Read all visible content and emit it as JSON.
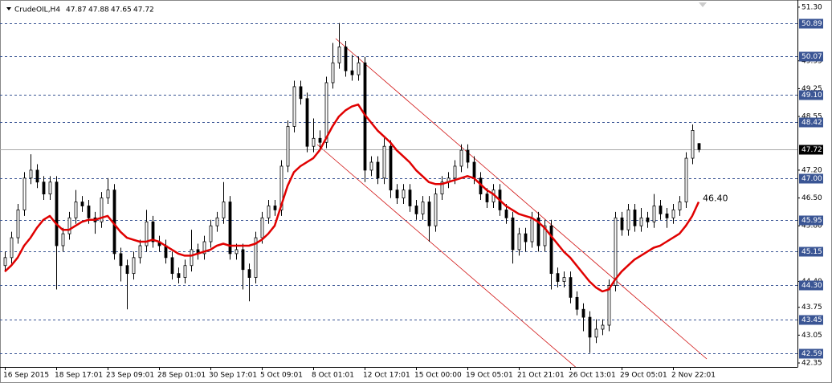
{
  "chart_data": {
    "type": "candlestick",
    "symbol": "CrudeOIL,H4",
    "categories": [
      "16 Sep 2015",
      null,
      null,
      null,
      null,
      null,
      null,
      null,
      "18 Sep 17:01",
      null,
      null,
      null,
      null,
      null,
      null,
      null,
      "23 Sep 09:01",
      null,
      null,
      null,
      null,
      null,
      null,
      null,
      "28 Sep 01:01",
      null,
      null,
      null,
      null,
      null,
      null,
      null,
      "30 Sep 17:01",
      null,
      null,
      null,
      null,
      null,
      null,
      null,
      "5 Oct 09:01",
      null,
      null,
      null,
      null,
      null,
      null,
      null,
      "8 Oct 01:01",
      null,
      null,
      null,
      null,
      null,
      null,
      null,
      "12 Oct 17:01",
      null,
      null,
      null,
      null,
      null,
      null,
      null,
      "15 Oct 00:00",
      null,
      null,
      null,
      null,
      null,
      null,
      null,
      "19 Oct 05:01",
      null,
      null,
      null,
      null,
      null,
      null,
      null,
      "21 Oct 21:01",
      null,
      null,
      null,
      null,
      null,
      null,
      null,
      "26 Oct 13:01",
      null,
      null,
      null,
      null,
      null,
      null,
      null,
      "29 Oct 05:01",
      null,
      null,
      null,
      null,
      null,
      null,
      null,
      "2 Nov 22:01",
      null,
      null,
      null,
      null
    ],
    "open": [
      44.8,
      45.0,
      45.5,
      46.2,
      47.0,
      47.2,
      46.9,
      46.6,
      46.9,
      45.3,
      45.6,
      46.0,
      46.4,
      46.3,
      46.0,
      45.9,
      46.5,
      46.7,
      45.1,
      44.8,
      44.6,
      45.0,
      45.3,
      45.9,
      45.4,
      45.3,
      45.0,
      44.6,
      44.5,
      44.8,
      45.2,
      45.1,
      45.4,
      45.8,
      46.0,
      46.4,
      45.1,
      45.2,
      44.7,
      44.5,
      45.5,
      46.0,
      46.3,
      46.2,
      47.3,
      48.3,
      49.3,
      49.0,
      47.8,
      48.0,
      47.9,
      49.4,
      49.9,
      50.3,
      49.7,
      49.6,
      49.9,
      47.2,
      47.4,
      47.0,
      47.8,
      46.7,
      46.5,
      46.7,
      46.3,
      46.1,
      46.4,
      45.8,
      46.6,
      46.9,
      47.0,
      47.3,
      47.7,
      47.4,
      47.0,
      46.6,
      46.4,
      46.7,
      46.2,
      46.0,
      45.2,
      45.6,
      45.4,
      46.0,
      45.3,
      45.8,
      44.6,
      44.4,
      44.5,
      44.0,
      43.7,
      43.5,
      43.0,
      43.2,
      43.3,
      44.3,
      46.0,
      45.7,
      46.2,
      45.8,
      46.0,
      45.9,
      46.3,
      46.1,
      46.0,
      46.2,
      46.4,
      47.5,
      47.87
    ],
    "high": [
      45.15,
      45.65,
      46.35,
      47.15,
      47.6,
      47.35,
      47.05,
      47.05,
      47.05,
      45.75,
      46.15,
      46.7,
      46.55,
      46.45,
      46.15,
      46.65,
      47.0,
      46.85,
      45.25,
      44.95,
      45.15,
      45.45,
      46.2,
      46.05,
      45.55,
      45.45,
      45.15,
      44.75,
      44.95,
      45.7,
      45.35,
      45.55,
      45.95,
      46.15,
      46.9,
      46.55,
      45.35,
      45.35,
      44.85,
      45.65,
      46.15,
      46.45,
      46.45,
      47.45,
      48.45,
      49.45,
      49.45,
      49.15,
      48.5,
      48.2,
      49.55,
      50.4,
      50.9,
      50.45,
      50.1,
      50.05,
      50.05,
      47.55,
      47.55,
      48.0,
      47.95,
      46.85,
      46.85,
      46.85,
      46.45,
      46.55,
      46.55,
      46.75,
      47.05,
      47.15,
      47.45,
      47.85,
      47.85,
      47.55,
      47.15,
      46.75,
      46.85,
      46.85,
      46.35,
      46.15,
      45.75,
      45.75,
      46.15,
      46.15,
      45.95,
      45.95,
      44.75,
      44.65,
      44.65,
      44.15,
      43.85,
      43.65,
      43.45,
      43.45,
      44.45,
      46.15,
      46.15,
      46.35,
      46.35,
      46.25,
      46.15,
      46.6,
      46.45,
      46.25,
      46.35,
      46.55,
      47.65,
      48.35,
      47.88
    ],
    "low": [
      44.65,
      44.85,
      45.35,
      46.05,
      46.85,
      46.75,
      46.45,
      46.45,
      44.2,
      45.15,
      45.45,
      45.85,
      46.15,
      45.85,
      45.6,
      45.75,
      46.35,
      44.95,
      44.4,
      43.7,
      44.45,
      44.85,
      45.15,
      45.25,
      45.15,
      44.85,
      44.45,
      44.35,
      44.35,
      44.65,
      44.95,
      44.95,
      45.25,
      45.65,
      45.85,
      44.95,
      44.95,
      44.2,
      43.9,
      44.35,
      45.35,
      45.85,
      46.05,
      46.05,
      47.15,
      48.15,
      48.85,
      47.65,
      47.65,
      47.75,
      47.75,
      49.25,
      49.75,
      49.55,
      49.45,
      49.45,
      46.9,
      47.05,
      46.85,
      46.85,
      46.5,
      46.35,
      46.35,
      46.15,
      45.95,
      45.95,
      45.4,
      45.65,
      46.45,
      46.75,
      46.85,
      47.15,
      47.25,
      46.85,
      46.45,
      46.25,
      46.25,
      46.05,
      45.85,
      44.85,
      45.05,
      45.15,
      45.25,
      45.15,
      45.15,
      44.2,
      44.25,
      44.25,
      43.85,
      43.55,
      43.15,
      42.6,
      42.85,
      43.05,
      43.15,
      44.15,
      45.55,
      45.55,
      45.65,
      45.65,
      45.75,
      45.75,
      45.95,
      45.75,
      45.85,
      46.05,
      46.25,
      47.35,
      47.65
    ],
    "close": [
      45.0,
      45.5,
      46.2,
      47.0,
      47.2,
      46.9,
      46.6,
      46.9,
      45.3,
      45.6,
      46.0,
      46.4,
      46.3,
      46.0,
      45.9,
      46.5,
      46.7,
      45.1,
      44.8,
      44.6,
      45.0,
      45.3,
      45.9,
      45.4,
      45.3,
      45.0,
      44.6,
      44.5,
      44.8,
      45.2,
      45.1,
      45.4,
      45.8,
      46.0,
      46.4,
      45.1,
      45.2,
      44.7,
      44.5,
      45.5,
      46.0,
      46.3,
      46.2,
      47.3,
      48.3,
      49.3,
      49.0,
      47.8,
      48.0,
      47.9,
      49.4,
      49.9,
      50.3,
      49.7,
      49.6,
      49.9,
      47.2,
      47.4,
      47.0,
      47.8,
      46.7,
      46.5,
      46.7,
      46.3,
      46.1,
      46.4,
      45.8,
      46.6,
      46.9,
      47.0,
      47.3,
      47.7,
      47.4,
      47.0,
      46.6,
      46.4,
      46.7,
      46.2,
      46.0,
      45.2,
      45.6,
      45.4,
      46.0,
      45.3,
      45.8,
      44.6,
      44.4,
      44.5,
      44.0,
      43.7,
      43.5,
      43.0,
      43.2,
      43.3,
      44.3,
      46.0,
      45.7,
      46.2,
      45.8,
      46.0,
      45.9,
      46.3,
      46.1,
      46.0,
      46.2,
      46.4,
      47.5,
      48.2,
      47.72
    ],
    "ma": {
      "color": "#e00000",
      "end_label": "46.40",
      "values": [
        44.65,
        44.8,
        45.0,
        45.3,
        45.5,
        45.75,
        45.95,
        46.05,
        45.85,
        45.7,
        45.7,
        45.8,
        45.9,
        45.95,
        45.95,
        46.0,
        46.05,
        45.85,
        45.65,
        45.5,
        45.45,
        45.4,
        45.4,
        45.45,
        45.4,
        45.3,
        45.2,
        45.1,
        45.05,
        45.05,
        45.1,
        45.15,
        45.2,
        45.3,
        45.35,
        45.3,
        45.3,
        45.3,
        45.3,
        45.35,
        45.45,
        45.6,
        45.8,
        46.3,
        46.8,
        47.15,
        47.3,
        47.4,
        47.5,
        47.7,
        48.0,
        48.3,
        48.55,
        48.7,
        48.8,
        48.85,
        48.6,
        48.4,
        48.2,
        48.05,
        47.9,
        47.7,
        47.55,
        47.4,
        47.2,
        47.05,
        46.9,
        46.85,
        46.85,
        46.9,
        46.95,
        47.0,
        47.05,
        47.0,
        46.85,
        46.7,
        46.6,
        46.45,
        46.3,
        46.2,
        46.1,
        46.05,
        46.0,
        45.9,
        45.75,
        45.55,
        45.35,
        45.15,
        45.0,
        44.8,
        44.6,
        44.4,
        44.25,
        44.15,
        44.2,
        44.45,
        44.65,
        44.8,
        44.95,
        45.05,
        45.15,
        45.25,
        45.3,
        45.4,
        45.5,
        45.6,
        45.8,
        46.05,
        46.4
      ]
    },
    "levels": [
      50.89,
      50.07,
      {
        "value": 49.1,
        "label": "49.10"
      },
      48.42,
      {
        "value": 47.0,
        "label": "47.00"
      },
      45.95,
      45.15,
      {
        "value": 44.3,
        "label": "44.30"
      },
      43.45,
      42.59
    ],
    "ylim": [
      42.25,
      51.48
    ],
    "yticks": [
      {
        "value": 51.3,
        "label": "51.30"
      },
      49.95,
      49.25,
      48.55,
      {
        "value": 47.2,
        "label": "47.20"
      },
      {
        "value": 46.5,
        "label": "46.50"
      },
      {
        "value": 45.8,
        "label": "45.80"
      },
      {
        "value": 44.4,
        "label": "44.40"
      },
      43.75,
      43.05,
      42.35
    ],
    "up_color": "#ffffff",
    "down_color": "#000000",
    "wick_color": "#000000",
    "level_color": "#3a5594",
    "price_line_color": "#a8a8a8"
  }
}
